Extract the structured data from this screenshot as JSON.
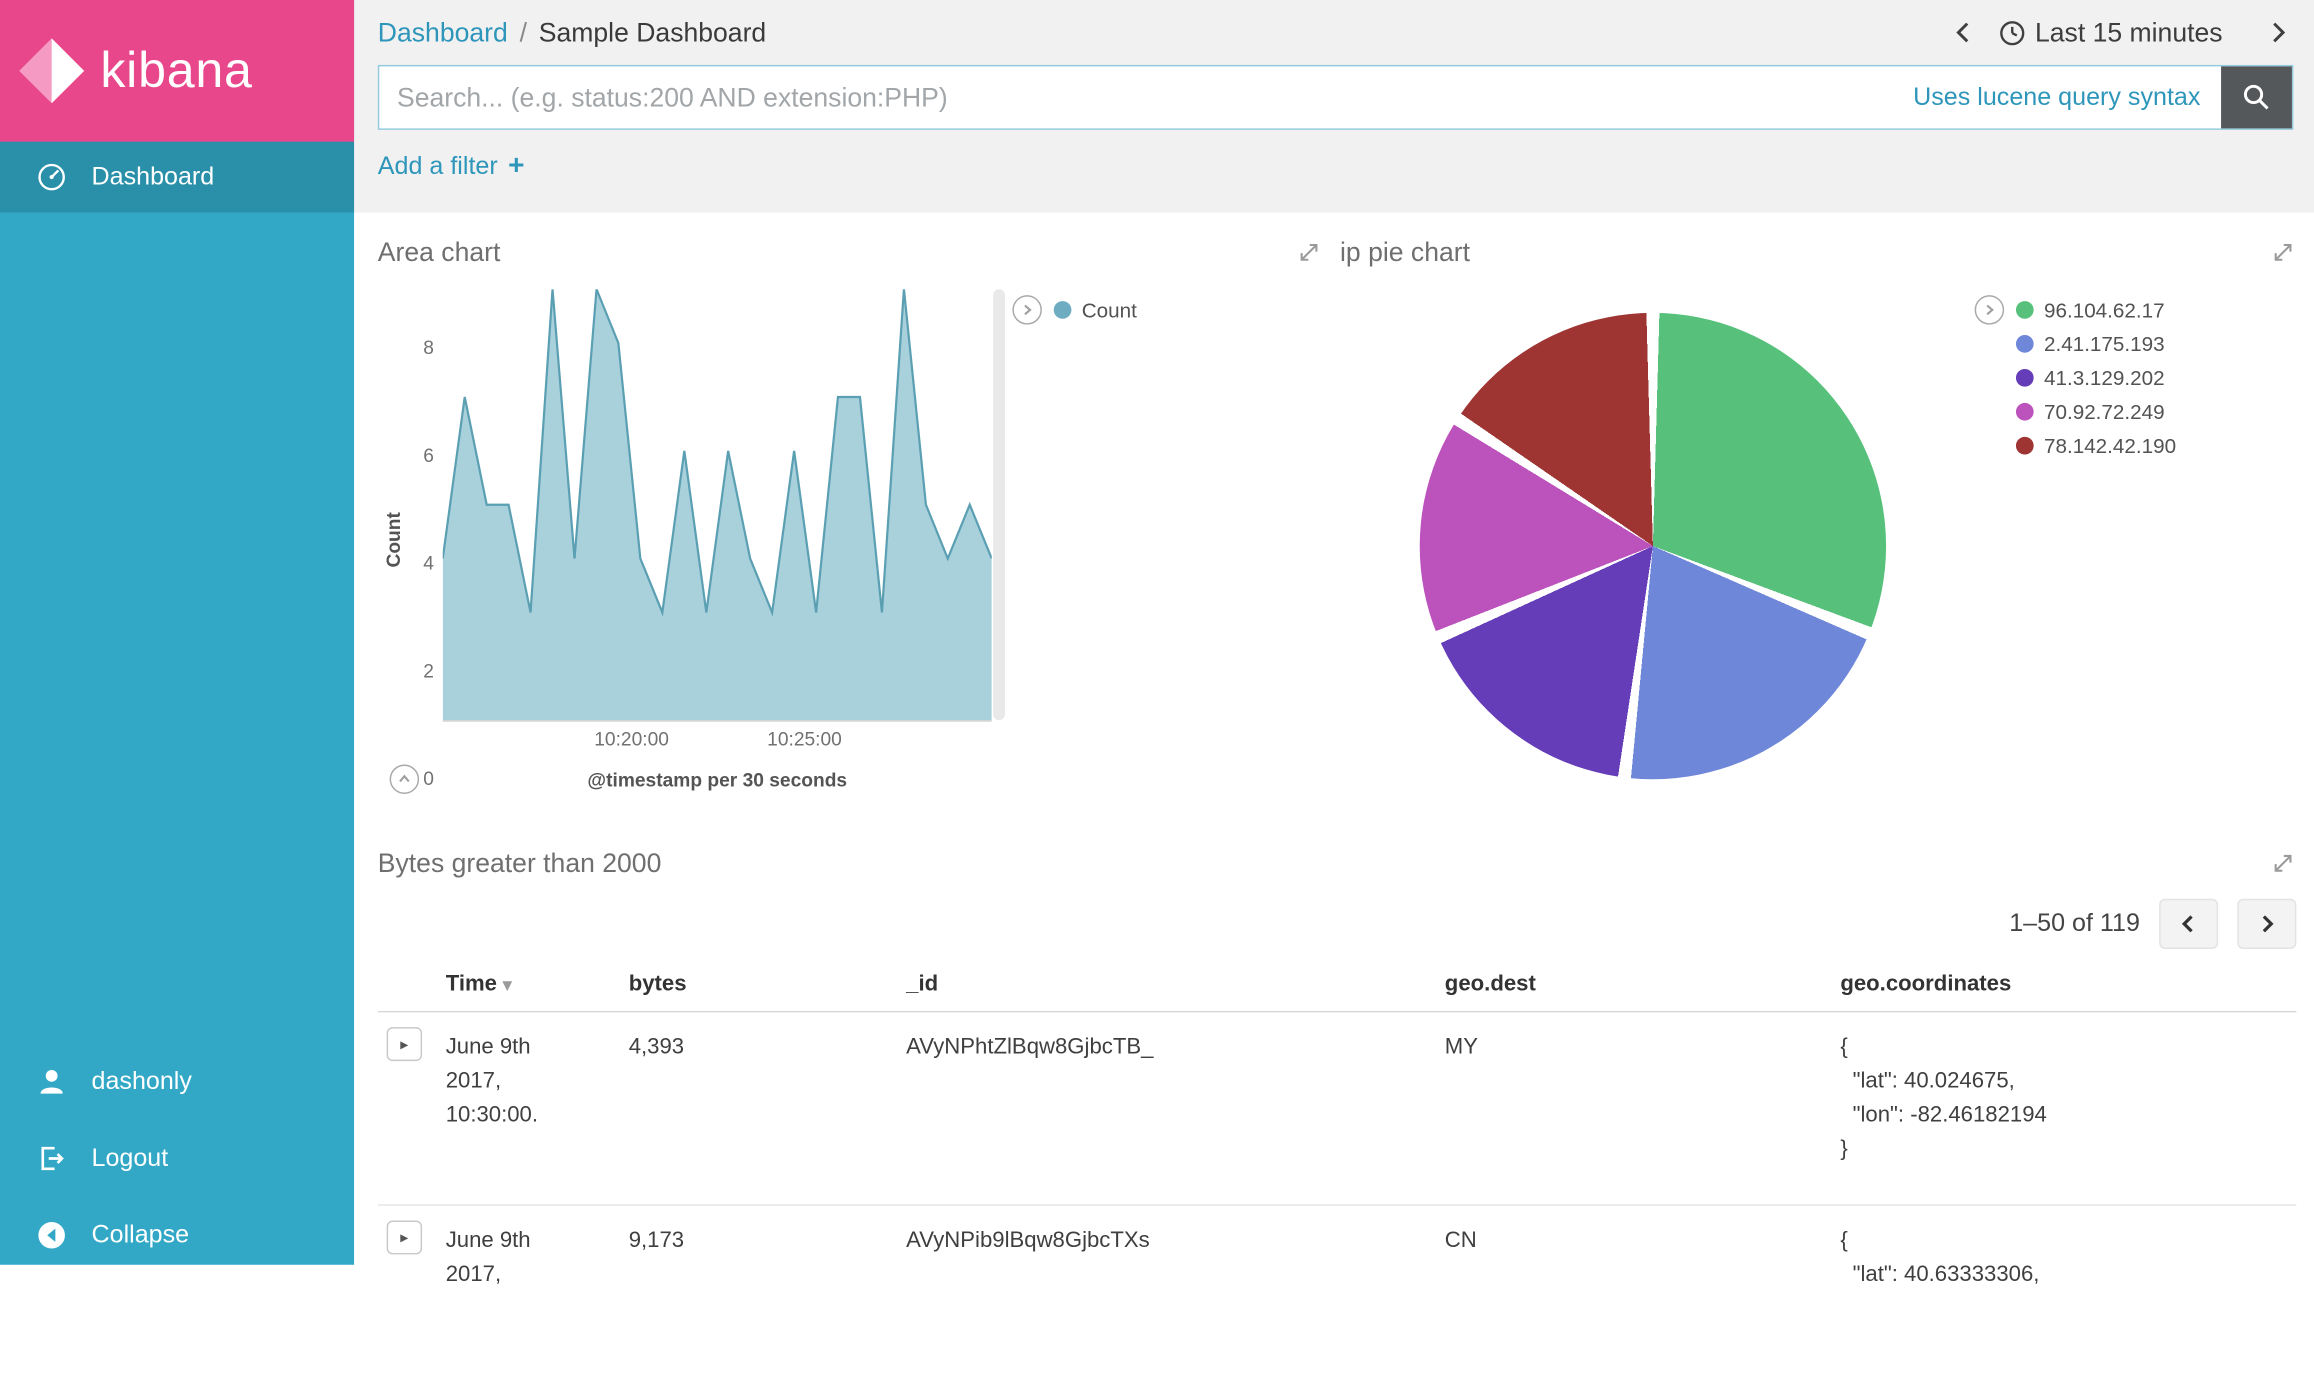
{
  "sidebar": {
    "logo_text": "kibana",
    "nav": [
      {
        "label": "Dashboard"
      }
    ],
    "footer": [
      {
        "label": "dashonly"
      },
      {
        "label": "Logout"
      },
      {
        "label": "Collapse"
      }
    ]
  },
  "topbar": {
    "breadcrumb": {
      "root": "Dashboard",
      "separator": "/",
      "current": "Sample Dashboard"
    },
    "time_label": "Last 15 minutes"
  },
  "search": {
    "placeholder": "Search... (e.g. status:200 AND extension:PHP)",
    "syntax_link": "Uses lucene query syntax"
  },
  "filters": {
    "add_label": "Add a filter",
    "plus": "+"
  },
  "panels": {
    "area": {
      "title": "Area chart",
      "ylabel": "Count",
      "caption": "@timestamp per 30 seconds",
      "legend": [
        {
          "label": "Count",
          "color": "#6eadc1"
        }
      ]
    },
    "pie": {
      "title": "ip pie chart"
    },
    "table": {
      "title": "Bytes greater than 2000",
      "pagination": "1–50 of 119",
      "columns": [
        "Time",
        "bytes",
        "_id",
        "geo.dest",
        "geo.coordinates"
      ],
      "rows": [
        {
          "time": "June 9th 2017, 10:30:00.",
          "bytes": "4,393",
          "id": "AVyNPhtZlBqw8GjbcTB_",
          "dest": "MY",
          "coordinates": "{\n  \"lat\": 40.024675,\n  \"lon\": -82.46182194\n}"
        },
        {
          "time": "June 9th 2017,",
          "bytes": "9,173",
          "id": "AVyNPib9lBqw8GjbcTXs",
          "dest": "CN",
          "coordinates": "{\n  \"lat\": 40.63333306,"
        }
      ]
    }
  },
  "chart_data": [
    {
      "type": "area",
      "title": "Area chart",
      "series": [
        {
          "name": "Count"
        }
      ],
      "ylabel": "Count",
      "ylim": [
        0,
        8
      ],
      "yticks": [
        0,
        2,
        4,
        6,
        8
      ],
      "xticks": [
        {
          "label": "10:20:00",
          "pos": 0.344
        },
        {
          "label": "10:25:00",
          "pos": 0.659
        }
      ],
      "xlabel": "@timestamp per 30 seconds",
      "values": [
        3,
        6,
        4,
        4,
        2,
        8,
        3,
        8,
        7,
        3,
        2,
        5,
        2,
        5,
        3,
        2,
        5,
        2,
        6,
        6,
        2,
        8,
        4,
        3,
        4,
        3
      ],
      "color": "#5b9fb3",
      "fill": "#a9d1dc",
      "legend_position": "right",
      "grid": false
    },
    {
      "type": "pie",
      "title": "ip pie chart",
      "legend_position": "right",
      "slices": [
        {
          "label": "96.104.62.17",
          "color": "#57c17b",
          "angle": 112,
          "percent": 31.1
        },
        {
          "label": "2.41.175.193",
          "color": "#6f87d8",
          "angle": 75,
          "percent": 20.8
        },
        {
          "label": "41.3.129.202",
          "color": "#663db8",
          "angle": 60,
          "percent": 16.7
        },
        {
          "label": "70.92.72.249",
          "color": "#bc52bc",
          "angle": 56,
          "percent": 15.6
        },
        {
          "label": "78.142.42.190",
          "color": "#9e3533",
          "angle": 57,
          "percent": 15.8
        }
      ]
    }
  ]
}
